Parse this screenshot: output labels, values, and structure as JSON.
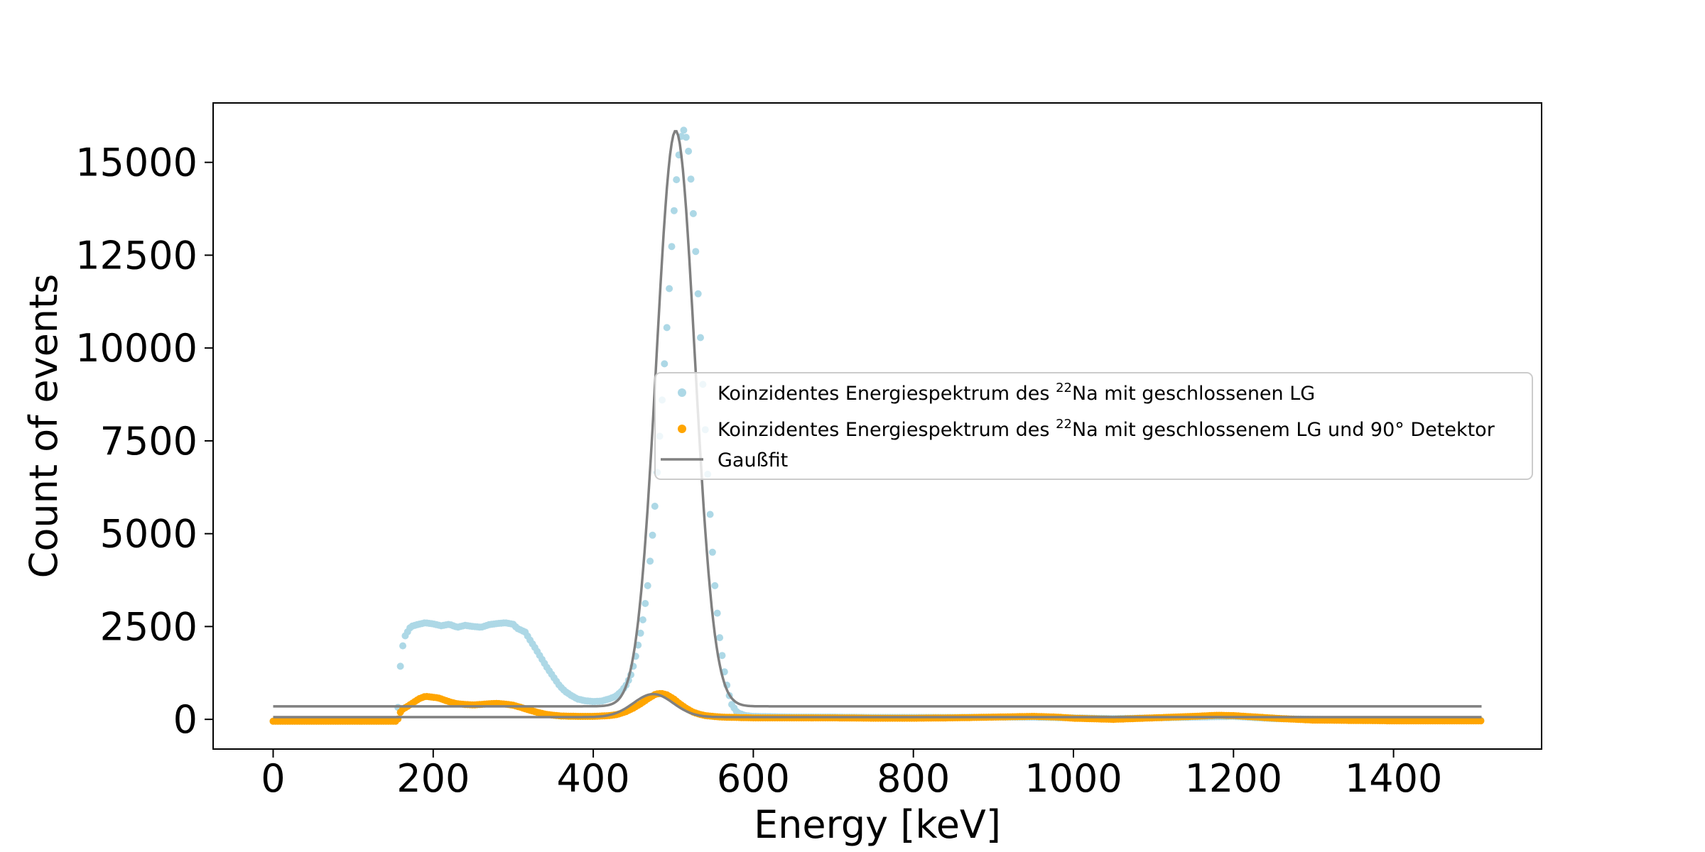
{
  "chart_data": {
    "type": "scatter",
    "xlabel": "Energy [keV]",
    "ylabel": "Count of events",
    "xlim": [
      -75,
      1585
    ],
    "ylim": [
      -800,
      16600
    ],
    "xticks": [
      0,
      200,
      400,
      600,
      800,
      1000,
      1200,
      1400
    ],
    "yticks": [
      0,
      2500,
      5000,
      7500,
      10000,
      12500,
      15000
    ],
    "grid": false,
    "legend_position": "center-right",
    "colors": {
      "series1": "#add8e6",
      "series2": "#ffa500",
      "fit": "#808080"
    },
    "series": [
      {
        "name_parts": [
          "Koinzidentes Energiespektrum des ",
          "22",
          "Na mit geschlossenen LG"
        ],
        "marker": "point",
        "data": [
          [
            0,
            -50
          ],
          [
            40,
            -50
          ],
          [
            80,
            -50
          ],
          [
            120,
            -50
          ],
          [
            155,
            -50
          ],
          [
            160,
            1800
          ],
          [
            165,
            2250
          ],
          [
            172,
            2500
          ],
          [
            180,
            2550
          ],
          [
            190,
            2600
          ],
          [
            200,
            2570
          ],
          [
            210,
            2520
          ],
          [
            220,
            2560
          ],
          [
            230,
            2480
          ],
          [
            240,
            2530
          ],
          [
            250,
            2500
          ],
          [
            260,
            2480
          ],
          [
            270,
            2550
          ],
          [
            280,
            2580
          ],
          [
            290,
            2600
          ],
          [
            300,
            2560
          ],
          [
            305,
            2450
          ],
          [
            315,
            2350
          ],
          [
            322,
            2100
          ],
          [
            328,
            1900
          ],
          [
            335,
            1650
          ],
          [
            342,
            1400
          ],
          [
            350,
            1150
          ],
          [
            358,
            900
          ],
          [
            365,
            750
          ],
          [
            372,
            650
          ],
          [
            380,
            550
          ],
          [
            390,
            500
          ],
          [
            400,
            480
          ],
          [
            410,
            490
          ],
          [
            420,
            550
          ],
          [
            428,
            620
          ],
          [
            435,
            750
          ],
          [
            442,
            950
          ],
          [
            448,
            1250
          ],
          [
            453,
            1700
          ],
          [
            458,
            2200
          ],
          [
            463,
            2800
          ],
          [
            468,
            3600
          ],
          [
            473,
            4700
          ],
          [
            478,
            6000
          ],
          [
            482,
            7300
          ],
          [
            486,
            8600
          ],
          [
            490,
            9900
          ],
          [
            494,
            11200
          ],
          [
            497,
            12400
          ],
          [
            500,
            13400
          ],
          [
            503,
            14300
          ],
          [
            506,
            15000
          ],
          [
            509,
            15600
          ],
          [
            512,
            15900
          ],
          [
            515,
            15800
          ],
          [
            519,
            15300
          ],
          [
            523,
            14300
          ],
          [
            528,
            12600
          ],
          [
            533,
            10700
          ],
          [
            538,
            8600
          ],
          [
            543,
            6600
          ],
          [
            548,
            4800
          ],
          [
            553,
            3300
          ],
          [
            558,
            2200
          ],
          [
            563,
            1400
          ],
          [
            568,
            800
          ],
          [
            573,
            400
          ],
          [
            580,
            180
          ],
          [
            590,
            100
          ],
          [
            600,
            80
          ],
          [
            650,
            60
          ],
          [
            700,
            60
          ],
          [
            750,
            50
          ],
          [
            800,
            50
          ],
          [
            850,
            50
          ],
          [
            900,
            60
          ],
          [
            950,
            60
          ],
          [
            1000,
            40
          ],
          [
            1050,
            20
          ],
          [
            1100,
            40
          ],
          [
            1150,
            60
          ],
          [
            1200,
            80
          ],
          [
            1250,
            20
          ],
          [
            1300,
            0
          ],
          [
            1350,
            -20
          ],
          [
            1400,
            -30
          ],
          [
            1450,
            -30
          ],
          [
            1510,
            -30
          ]
        ]
      },
      {
        "name_parts": [
          "Koinzidentes Energiespektrum des ",
          "22",
          "Na mit geschlossenem LG und 90° Detektor"
        ],
        "marker": "point",
        "data": [
          [
            0,
            -50
          ],
          [
            40,
            -50
          ],
          [
            80,
            -50
          ],
          [
            120,
            -50
          ],
          [
            155,
            -50
          ],
          [
            160,
            250
          ],
          [
            168,
            350
          ],
          [
            175,
            450
          ],
          [
            182,
            550
          ],
          [
            190,
            620
          ],
          [
            198,
            600
          ],
          [
            206,
            580
          ],
          [
            214,
            520
          ],
          [
            222,
            460
          ],
          [
            230,
            420
          ],
          [
            240,
            400
          ],
          [
            250,
            390
          ],
          [
            260,
            400
          ],
          [
            270,
            420
          ],
          [
            280,
            430
          ],
          [
            290,
            410
          ],
          [
            300,
            380
          ],
          [
            310,
            320
          ],
          [
            320,
            250
          ],
          [
            330,
            190
          ],
          [
            340,
            140
          ],
          [
            350,
            110
          ],
          [
            360,
            90
          ],
          [
            380,
            80
          ],
          [
            400,
            80
          ],
          [
            420,
            100
          ],
          [
            430,
            130
          ],
          [
            440,
            200
          ],
          [
            450,
            300
          ],
          [
            460,
            430
          ],
          [
            470,
            580
          ],
          [
            478,
            680
          ],
          [
            485,
            700
          ],
          [
            492,
            660
          ],
          [
            500,
            560
          ],
          [
            508,
            420
          ],
          [
            516,
            300
          ],
          [
            524,
            200
          ],
          [
            532,
            140
          ],
          [
            540,
            100
          ],
          [
            560,
            60
          ],
          [
            600,
            40
          ],
          [
            650,
            40
          ],
          [
            700,
            40
          ],
          [
            750,
            30
          ],
          [
            800,
            30
          ],
          [
            850,
            40
          ],
          [
            900,
            60
          ],
          [
            950,
            80
          ],
          [
            980,
            60
          ],
          [
            1000,
            30
          ],
          [
            1050,
            0
          ],
          [
            1100,
            40
          ],
          [
            1150,
            80
          ],
          [
            1180,
            110
          ],
          [
            1200,
            100
          ],
          [
            1230,
            60
          ],
          [
            1260,
            20
          ],
          [
            1300,
            -20
          ],
          [
            1350,
            -30
          ],
          [
            1400,
            -40
          ],
          [
            1450,
            -40
          ],
          [
            1510,
            -40
          ]
        ]
      }
    ],
    "fit": {
      "name": "Gaußfit",
      "curves": [
        {
          "amplitude": 15500,
          "center": 503,
          "sigma": 24,
          "offset": 350
        },
        {
          "amplitude": 620,
          "center": 475,
          "sigma": 25,
          "offset": 60
        }
      ],
      "x_range": [
        0,
        1510
      ]
    }
  }
}
